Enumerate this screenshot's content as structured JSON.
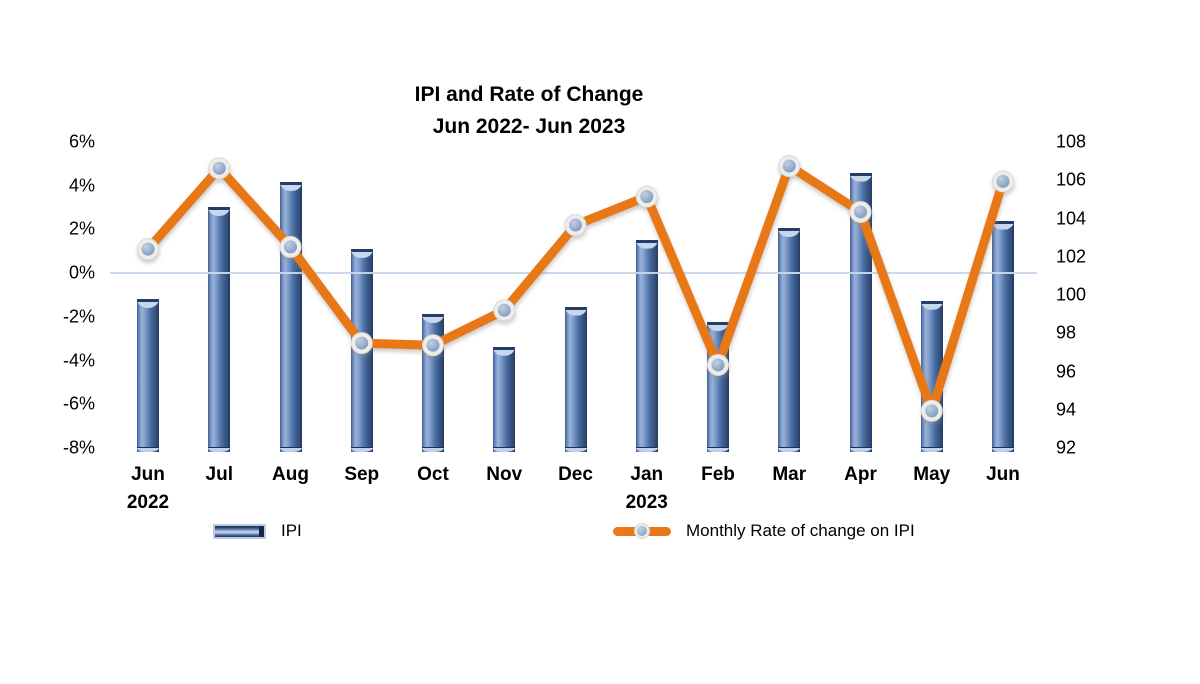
{
  "chart_data": {
    "type": "combo-bar-line",
    "title": "IPI and Rate of Change",
    "subtitle": "Jun 2022- Jun 2023",
    "categories": [
      {
        "month": "Jun",
        "year": "2022"
      },
      {
        "month": "Jul",
        "year": ""
      },
      {
        "month": "Aug",
        "year": ""
      },
      {
        "month": "Sep",
        "year": ""
      },
      {
        "month": "Oct",
        "year": ""
      },
      {
        "month": "Nov",
        "year": ""
      },
      {
        "month": "Dec",
        "year": ""
      },
      {
        "month": "Jan",
        "year": "2023"
      },
      {
        "month": "Feb",
        "year": ""
      },
      {
        "month": "Mar",
        "year": ""
      },
      {
        "month": "Apr",
        "year": ""
      },
      {
        "month": "May",
        "year": ""
      },
      {
        "month": "Jun",
        "year": ""
      }
    ],
    "series": [
      {
        "name": "IPI",
        "type": "bar",
        "axis": "right",
        "values": [
          100.0,
          104.8,
          106.1,
          102.6,
          99.2,
          97.5,
          99.6,
          103.1,
          98.8,
          103.7,
          106.6,
          99.9,
          104.1
        ]
      },
      {
        "name": "Monthly Rate of change on IPI",
        "type": "line",
        "axis": "left",
        "values": [
          1.1,
          4.8,
          1.2,
          -3.2,
          -3.3,
          -1.7,
          2.2,
          3.5,
          -4.2,
          4.9,
          2.8,
          -6.3,
          4.2
        ]
      }
    ],
    "left_axis": {
      "labels": [
        "6%",
        "4%",
        "2%",
        "0%",
        "-2%",
        "-4%",
        "-6%",
        "-8%"
      ],
      "values": [
        6,
        4,
        2,
        0,
        -2,
        -4,
        -6,
        -8
      ],
      "min": -8,
      "max": 6
    },
    "right_axis": {
      "labels": [
        "108",
        "106",
        "104",
        "102",
        "100",
        "98",
        "96",
        "94",
        "92"
      ],
      "values": [
        108,
        106,
        104,
        102,
        100,
        98,
        96,
        94,
        92
      ],
      "min": 92,
      "max": 108
    },
    "gridline_value": 0,
    "grid": "single-zero-line",
    "legend_position": "bottom"
  },
  "legend": {
    "ipi_label": "IPI",
    "rate_label": "Monthly Rate of change on IPI"
  },
  "colors": {
    "line": "#e87818",
    "marker_fill": "#8fa5c5",
    "marker_ring": "#edeeec",
    "bar_light": "#9ab1d8",
    "bar_mid": "#4f81bd",
    "bar_dark": "#24395e",
    "gridline": "#c7d7ec",
    "text": "#000000"
  }
}
